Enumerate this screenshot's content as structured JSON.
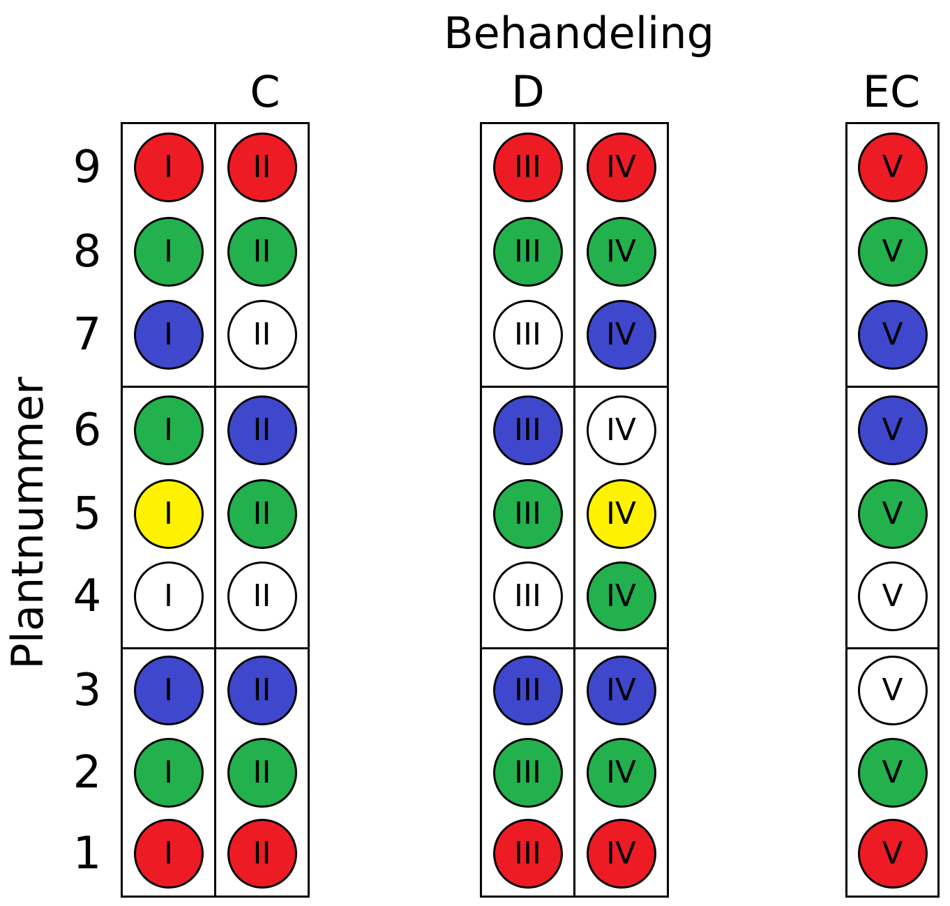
{
  "title": "Behandeling",
  "ylabel": "Plantnummer",
  "rows": [
    "9",
    "8",
    "7",
    "6",
    "5",
    "4",
    "3",
    "2",
    "1"
  ],
  "colors": {
    "red": "#ed1c24",
    "green": "#22b14c",
    "blue": "#3f48cc",
    "white": "#ffffff",
    "yellow": "#fff200"
  },
  "groups": [
    {
      "label": "C",
      "columns": [
        {
          "numeral": "I",
          "cells": [
            "red",
            "green",
            "blue",
            "green",
            "yellow",
            "white",
            "blue",
            "green",
            "red"
          ]
        },
        {
          "numeral": "II",
          "cells": [
            "red",
            "green",
            "white",
            "blue",
            "green",
            "white",
            "blue",
            "green",
            "red"
          ]
        }
      ]
    },
    {
      "label": "D",
      "columns": [
        {
          "numeral": "III",
          "cells": [
            "red",
            "green",
            "white",
            "blue",
            "green",
            "white",
            "blue",
            "green",
            "red"
          ]
        },
        {
          "numeral": "IV",
          "cells": [
            "red",
            "green",
            "blue",
            "white",
            "yellow",
            "green",
            "blue",
            "green",
            "red"
          ]
        }
      ]
    },
    {
      "label": "EC",
      "columns": [
        {
          "numeral": "V",
          "cells": [
            "red",
            "green",
            "blue",
            "blue",
            "green",
            "white",
            "white",
            "green",
            "red"
          ]
        }
      ]
    }
  ]
}
